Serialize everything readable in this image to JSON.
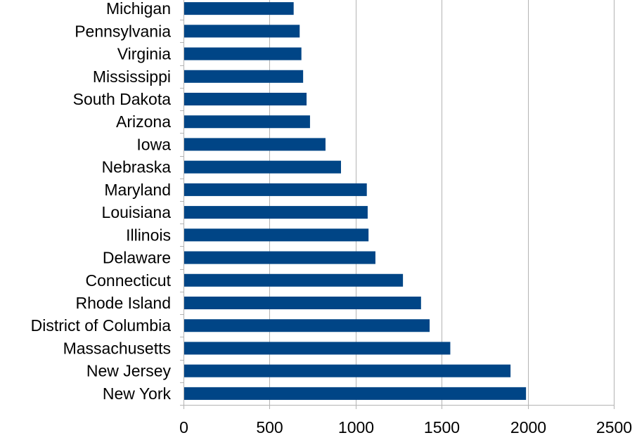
{
  "chart_data": {
    "type": "bar",
    "orientation": "horizontal",
    "title": "",
    "xlabel": "",
    "ylabel": "",
    "categories": [
      "New York",
      "New Jersey",
      "Massachusetts",
      "District of Columbia",
      "Rhode Island",
      "Connecticut",
      "Delaware",
      "Illinois",
      "Louisiana",
      "Maryland",
      "Nebraska",
      "Iowa",
      "Arizona",
      "South Dakota",
      "Mississippi",
      "Virginia",
      "Pennsylvania",
      "Michigan"
    ],
    "values": [
      1990,
      1900,
      1550,
      1430,
      1380,
      1275,
      1115,
      1075,
      1070,
      1065,
      915,
      825,
      735,
      715,
      695,
      685,
      675,
      640
    ],
    "xlim": [
      0,
      2500
    ],
    "xticks": [
      "0",
      "500",
      "1000",
      "1500",
      "2000",
      "2500"
    ],
    "grid": "vertical",
    "legend": "none",
    "colors": {
      "bar": "#004586",
      "grid": "#b3b3b3",
      "axis": "#b3b3b3"
    }
  }
}
